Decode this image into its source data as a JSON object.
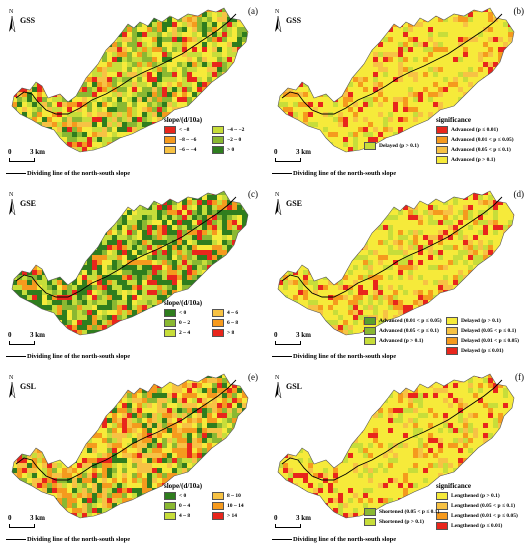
{
  "colors": {
    "c_red": "#e8261c",
    "c_orange": "#f59a1e",
    "c_lorange": "#f7c244",
    "c_yellow": "#f6ea3a",
    "c_yg": "#c7dd3a",
    "c_green": "#8ab832",
    "c_dgreen": "#2f7d1e",
    "c_mgreen": "#5aa02c"
  },
  "common": {
    "north_icon": "north-arrow-icon",
    "scale_zero": "0",
    "scale_dist": "3 km",
    "divider_label": "Dividing line of the north-south slope"
  },
  "panels": [
    {
      "id": "a",
      "letter": "(a)",
      "variable": "GSS",
      "legend": {
        "title": "slope/(d/10a)",
        "layout": "2col",
        "items": [
          {
            "label": "< −8",
            "color": "#e8261c"
          },
          {
            "label": "−4 ~ −2",
            "color": "#c7dd3a"
          },
          {
            "label": "−8 ~ −6",
            "color": "#f59a1e"
          },
          {
            "label": "−2 ~ 0",
            "color": "#8ab832"
          },
          {
            "label": "−6 ~ −4",
            "color": "#f7c244"
          },
          {
            "label": "> 0",
            "color": "#2f7d1e"
          }
        ]
      },
      "palette": [
        "#f6ea3a",
        "#f6ea3a",
        "#c7dd3a",
        "#c7dd3a",
        "#8ab832",
        "#8ab832",
        "#f7c244",
        "#f59a1e",
        "#e8261c",
        "#2f7d1e"
      ]
    },
    {
      "id": "b",
      "letter": "(b)",
      "variable": "GSS",
      "legend": {
        "title": "significance",
        "layout": "sig",
        "left_items": [
          {
            "label": "Delayed (p > 0.1)",
            "color": "#c7dd3a"
          }
        ],
        "items": [
          {
            "label": "Advanced (p ≤ 0.01)",
            "color": "#e8261c"
          },
          {
            "label": "Advanced (0.01 < p ≤ 0.05)",
            "color": "#f59a1e"
          },
          {
            "label": "Advanced (0.05 < p ≤ 0.1)",
            "color": "#f7c244"
          },
          {
            "label": "Advanced (p > 0.1)",
            "color": "#f6ea3a"
          }
        ]
      },
      "palette": [
        "#f6ea3a",
        "#f6ea3a",
        "#f6ea3a",
        "#f6ea3a",
        "#f6ea3a",
        "#f6ea3a",
        "#f7c244",
        "#f59a1e",
        "#e8261c",
        "#c7dd3a"
      ]
    },
    {
      "id": "c",
      "letter": "(c)",
      "variable": "GSE",
      "legend": {
        "title": "slope/(d/10a)",
        "layout": "2col",
        "items": [
          {
            "label": "< 0",
            "color": "#2f7d1e"
          },
          {
            "label": "4 ~ 6",
            "color": "#f7c244"
          },
          {
            "label": "0 ~ 2",
            "color": "#8ab832"
          },
          {
            "label": "6 ~ 8",
            "color": "#f59a1e"
          },
          {
            "label": "2 ~ 4",
            "color": "#c7dd3a"
          },
          {
            "label": "> 8",
            "color": "#e8261c"
          }
        ]
      },
      "palette": [
        "#2f7d1e",
        "#2f7d1e",
        "#2f7d1e",
        "#8ab832",
        "#8ab832",
        "#c7dd3a",
        "#c7dd3a",
        "#f6ea3a",
        "#f59a1e",
        "#e8261c"
      ]
    },
    {
      "id": "d",
      "letter": "(d)",
      "variable": "GSE",
      "legend": {
        "title": "",
        "layout": "sig2",
        "items": [
          {
            "label": "Advanced (0.01 < p ≤ 0.05)",
            "color": "#5aa02c"
          },
          {
            "label": "Delayed (p > 0.1)",
            "color": "#f6ea3a"
          },
          {
            "label": "Advanced (0.05 < p ≤ 0.1)",
            "color": "#8ab832"
          },
          {
            "label": "Delayed (0.05 < p ≤ 0.1)",
            "color": "#f7c244"
          },
          {
            "label": "Advanced (p > 0.1)",
            "color": "#c7dd3a"
          },
          {
            "label": "Delayed (0.01 < p ≤ 0.05)",
            "color": "#f59a1e"
          },
          {
            "label": "",
            "color": ""
          },
          {
            "label": "Delayed (p ≤ 0.01)",
            "color": "#e8261c"
          }
        ]
      },
      "palette": [
        "#f6ea3a",
        "#f6ea3a",
        "#f6ea3a",
        "#f6ea3a",
        "#f6ea3a",
        "#c7dd3a",
        "#c7dd3a",
        "#f7c244",
        "#f59a1e",
        "#e8261c"
      ]
    },
    {
      "id": "e",
      "letter": "(e)",
      "variable": "GSL",
      "legend": {
        "title": "slope/(d/10a)",
        "layout": "2col",
        "items": [
          {
            "label": "< 0",
            "color": "#2f7d1e"
          },
          {
            "label": "8 ~ 10",
            "color": "#f7c244"
          },
          {
            "label": "0 ~ 4",
            "color": "#8ab832"
          },
          {
            "label": "10 ~ 14",
            "color": "#f59a1e"
          },
          {
            "label": "4 ~ 8",
            "color": "#c7dd3a"
          },
          {
            "label": "> 14",
            "color": "#e8261c"
          }
        ]
      },
      "palette": [
        "#f6ea3a",
        "#f6ea3a",
        "#f7c244",
        "#f7c244",
        "#f59a1e",
        "#c7dd3a",
        "#8ab832",
        "#2f7d1e",
        "#e8261c",
        "#f59a1e"
      ]
    },
    {
      "id": "f",
      "letter": "(f)",
      "variable": "GSL",
      "legend": {
        "title": "significance",
        "layout": "sig",
        "left_items": [
          {
            "label": "Shortened (0.05 < p ≤ 0.1)",
            "color": "#8ab832"
          },
          {
            "label": "Shortened (p > 0.1)",
            "color": "#c7dd3a"
          }
        ],
        "items": [
          {
            "label": "Lengthened (p > 0.1)",
            "color": "#f6ea3a"
          },
          {
            "label": "Lengthened (0.05 < p ≤ 0.1)",
            "color": "#f7c244"
          },
          {
            "label": "Lengthened (0.01 < p ≤ 0.05)",
            "color": "#f59a1e"
          },
          {
            "label": "Lengthened (p ≤ 0.01)",
            "color": "#e8261c"
          }
        ]
      },
      "palette": [
        "#f6ea3a",
        "#f6ea3a",
        "#f6ea3a",
        "#f6ea3a",
        "#f6ea3a",
        "#f6ea3a",
        "#f7c244",
        "#f59a1e",
        "#e8261c",
        "#c7dd3a"
      ]
    }
  ]
}
